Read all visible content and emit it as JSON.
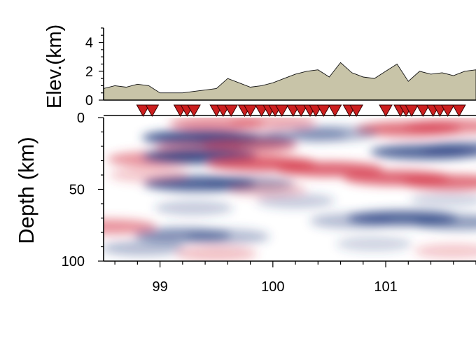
{
  "chart_data": [
    {
      "type": "area",
      "ylabel": "Elev.(km)",
      "ylim": [
        0,
        5
      ],
      "yticks": [
        "0",
        "2",
        "4"
      ],
      "fill_color": "#c8c4a8",
      "x": [
        98.5,
        98.6,
        98.7,
        98.8,
        98.9,
        99.0,
        99.1,
        99.2,
        99.3,
        99.4,
        99.5,
        99.6,
        99.7,
        99.8,
        99.9,
        100.0,
        100.1,
        100.2,
        100.3,
        100.4,
        100.5,
        100.6,
        100.7,
        100.8,
        100.9,
        101.0,
        101.1,
        101.2,
        101.3,
        101.4,
        101.5,
        101.6,
        101.7,
        101.8
      ],
      "values": [
        0.8,
        1.0,
        0.9,
        1.1,
        1.0,
        0.5,
        0.5,
        0.5,
        0.6,
        0.7,
        0.8,
        1.5,
        1.2,
        0.9,
        1.0,
        1.2,
        1.5,
        1.8,
        2.0,
        2.1,
        1.6,
        2.6,
        1.9,
        1.6,
        1.5,
        2.0,
        2.5,
        1.3,
        2.0,
        1.8,
        1.9,
        1.7,
        2.0,
        2.1
      ]
    },
    {
      "type": "heatmap",
      "ylabel": "Depth (km)",
      "ylim": [
        0,
        100
      ],
      "yticks": [
        "0",
        "50",
        "100"
      ],
      "xlim": [
        98.5,
        101.8
      ],
      "xticks": [
        "99",
        "100",
        "101"
      ],
      "colors": {
        "positive": "#d63a4b",
        "negative": "#2f4685"
      },
      "stations_x": [
        98.85,
        98.93,
        99.18,
        99.24,
        99.3,
        99.5,
        99.56,
        99.63,
        99.75,
        99.8,
        99.9,
        99.97,
        100.02,
        100.08,
        100.18,
        100.25,
        100.33,
        100.38,
        100.45,
        100.55,
        100.68,
        100.74,
        101.0,
        101.13,
        101.18,
        101.23,
        101.33,
        101.42,
        101.48,
        101.55,
        101.65
      ],
      "station_color": "#cc1f1f",
      "anomalies": [
        {
          "x": 99.5,
          "depth": 4,
          "amp": 0.6
        },
        {
          "x": 100.0,
          "depth": 3,
          "amp": 0.45
        },
        {
          "x": 101.2,
          "depth": 8,
          "amp": 0.8
        },
        {
          "x": 101.6,
          "depth": 6,
          "amp": 0.65
        },
        {
          "x": 99.35,
          "depth": 14,
          "amp": -1.0
        },
        {
          "x": 99.75,
          "depth": 16,
          "amp": -0.75
        },
        {
          "x": 100.3,
          "depth": 12,
          "amp": -0.35
        },
        {
          "x": 100.55,
          "depth": 11,
          "amp": -0.45
        },
        {
          "x": 101.35,
          "depth": 24,
          "amp": -0.9
        },
        {
          "x": 101.75,
          "depth": 22,
          "amp": -0.7
        },
        {
          "x": 99.8,
          "depth": 20,
          "amp": 0.6
        },
        {
          "x": 99.35,
          "depth": 22,
          "amp": 0.5
        },
        {
          "x": 98.95,
          "depth": 29,
          "amp": 0.6
        },
        {
          "x": 99.35,
          "depth": 27,
          "amp": -1.0
        },
        {
          "x": 99.9,
          "depth": 32,
          "amp": 0.9
        },
        {
          "x": 100.5,
          "depth": 36,
          "amp": 0.85
        },
        {
          "x": 101.1,
          "depth": 42,
          "amp": 0.85
        },
        {
          "x": 101.6,
          "depth": 45,
          "amp": 0.8
        },
        {
          "x": 99.35,
          "depth": 46,
          "amp": -0.95
        },
        {
          "x": 99.8,
          "depth": 46,
          "amp": -0.5
        },
        {
          "x": 98.9,
          "depth": 40,
          "amp": 0.3
        },
        {
          "x": 99.95,
          "depth": 50,
          "amp": 0.3
        },
        {
          "x": 100.2,
          "depth": 58,
          "amp": -0.3
        },
        {
          "x": 101.55,
          "depth": 57,
          "amp": -0.25
        },
        {
          "x": 101.15,
          "depth": 70,
          "amp": -0.9
        },
        {
          "x": 101.65,
          "depth": 73,
          "amp": -0.6
        },
        {
          "x": 100.7,
          "depth": 72,
          "amp": -0.4
        },
        {
          "x": 99.3,
          "depth": 63,
          "amp": -0.3
        },
        {
          "x": 98.55,
          "depth": 76,
          "amp": 0.6
        },
        {
          "x": 99.2,
          "depth": 82,
          "amp": -0.65
        },
        {
          "x": 99.6,
          "depth": 83,
          "amp": -0.4
        },
        {
          "x": 98.85,
          "depth": 91,
          "amp": -0.4
        },
        {
          "x": 99.5,
          "depth": 95,
          "amp": 0.35
        },
        {
          "x": 101.6,
          "depth": 93,
          "amp": 0.3
        },
        {
          "x": 100.9,
          "depth": 88,
          "amp": -0.25
        }
      ]
    }
  ]
}
